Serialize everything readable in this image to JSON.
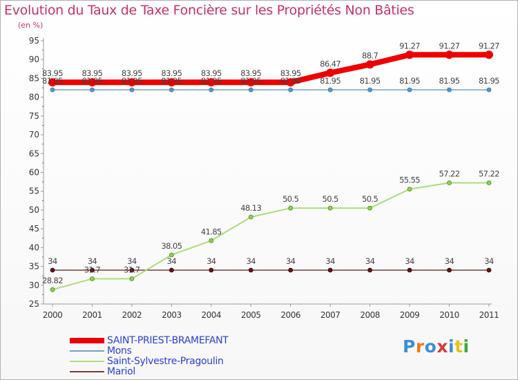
{
  "chart_data": {
    "type": "line",
    "title": "Evolution du Taux de Taxe Foncière sur les Propriétés Non Bâties",
    "ylabel": "(en %)",
    "xlabel": "",
    "ylim": [
      25,
      95
    ],
    "yticks": [
      25,
      30,
      35,
      40,
      45,
      50,
      55,
      60,
      65,
      70,
      75,
      80,
      85,
      90,
      95
    ],
    "categories": [
      "2000",
      "2001",
      "2002",
      "2003",
      "2004",
      "2005",
      "2006",
      "2007",
      "2008",
      "2009",
      "2010",
      "2011"
    ],
    "series": [
      {
        "name": "SAINT-PRIEST-BRAMEFANT",
        "color": "#ee0000",
        "values": [
          83.95,
          83.95,
          83.95,
          83.95,
          83.95,
          83.95,
          83.95,
          86.47,
          88.7,
          91.27,
          91.27,
          91.27
        ],
        "labels": [
          "83.95",
          "83.95",
          "83.95",
          "83.95",
          "83.95",
          "83.95",
          "83.95",
          "86.47",
          "88.7",
          "91.27",
          "91.27",
          "91.27"
        ]
      },
      {
        "name": "Mons",
        "color": "#6fa2cc",
        "values": [
          81.95,
          81.95,
          81.95,
          81.95,
          81.95,
          81.95,
          81.95,
          81.95,
          81.95,
          81.95,
          81.95,
          81.95
        ],
        "labels": [
          "81.95",
          "81.95",
          "81.95",
          "81.95",
          "81.95",
          "81.95",
          "81.95",
          "81.95",
          "81.95",
          "81.95",
          "81.95",
          "81.95"
        ]
      },
      {
        "name": "Saint-Sylvestre-Pragoulin",
        "color": "#aadd77",
        "values": [
          28.82,
          31.7,
          31.7,
          38.05,
          41.85,
          48.13,
          50.5,
          50.5,
          50.5,
          55.55,
          57.22,
          57.22
        ],
        "labels": [
          "28.82",
          "31.7",
          "31.7",
          "38.05",
          "41.85",
          "48.13",
          "50.5",
          "50.5",
          "50.5",
          "55.55",
          "57.22",
          "57.22"
        ]
      },
      {
        "name": "Mariol",
        "color": "#7a3a3a",
        "values": [
          34,
          34,
          34,
          34,
          34,
          34,
          34,
          34,
          34,
          34,
          34,
          34
        ],
        "labels": [
          "34",
          "34",
          "34",
          "34",
          "34",
          "34",
          "34",
          "34",
          "34",
          "34",
          "34",
          "34"
        ]
      }
    ],
    "legend_position": "bottom-left",
    "grid": false
  },
  "logo": {
    "parts": [
      "P",
      "r",
      "o",
      "x",
      "i",
      "t",
      "i"
    ],
    "colors": [
      "#3a8fd9",
      "#e87a1c",
      "#3a8fd9",
      "#d93a3a",
      "#3a8fd9",
      "#e8c21c",
      "#3aa83a"
    ]
  }
}
